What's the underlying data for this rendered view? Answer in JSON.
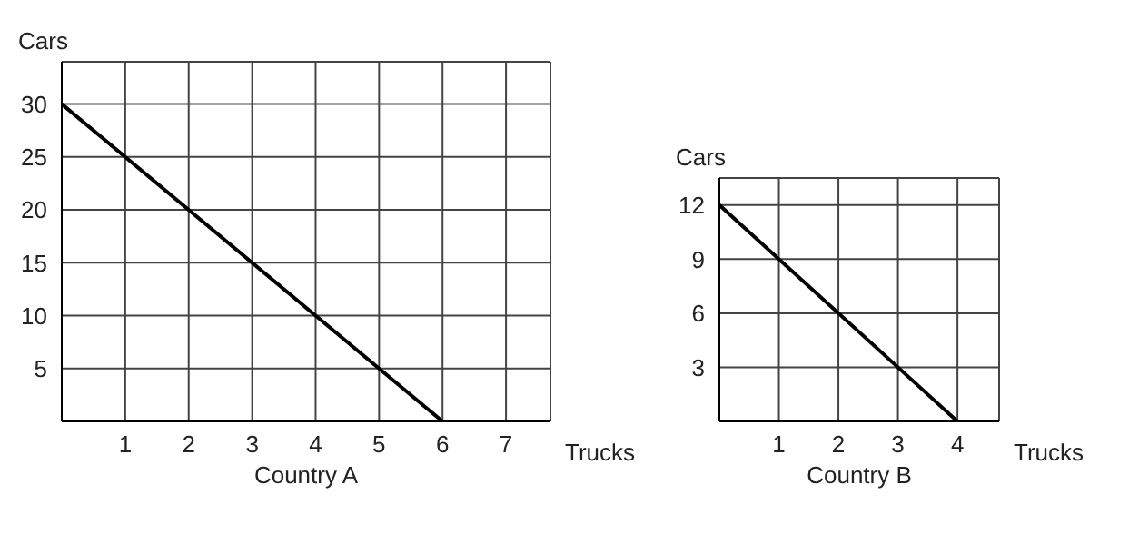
{
  "chart_data": [
    {
      "type": "line",
      "title": "Country A",
      "xlabel": "Trucks",
      "ylabel": "Cars",
      "x": [
        0,
        6
      ],
      "series": [
        {
          "color": "#000000",
          "values": [
            30,
            0
          ]
        }
      ],
      "xlim": [
        0,
        7.7
      ],
      "xticks": [
        1,
        2,
        3,
        4,
        5,
        6,
        7
      ],
      "ylim": [
        0,
        34
      ],
      "yticks": [
        5,
        10,
        15,
        20,
        25,
        30
      ],
      "grid": true
    },
    {
      "type": "line",
      "title": "Country B",
      "xlabel": "Trucks",
      "ylabel": "Cars",
      "x": [
        0,
        4
      ],
      "series": [
        {
          "color": "#000000",
          "values": [
            12,
            0
          ]
        }
      ],
      "xlim": [
        0,
        4.7
      ],
      "xticks": [
        1,
        2,
        3,
        4
      ],
      "ylim": [
        0,
        13.5
      ],
      "yticks": [
        3,
        6,
        9,
        12
      ],
      "grid": true
    }
  ]
}
